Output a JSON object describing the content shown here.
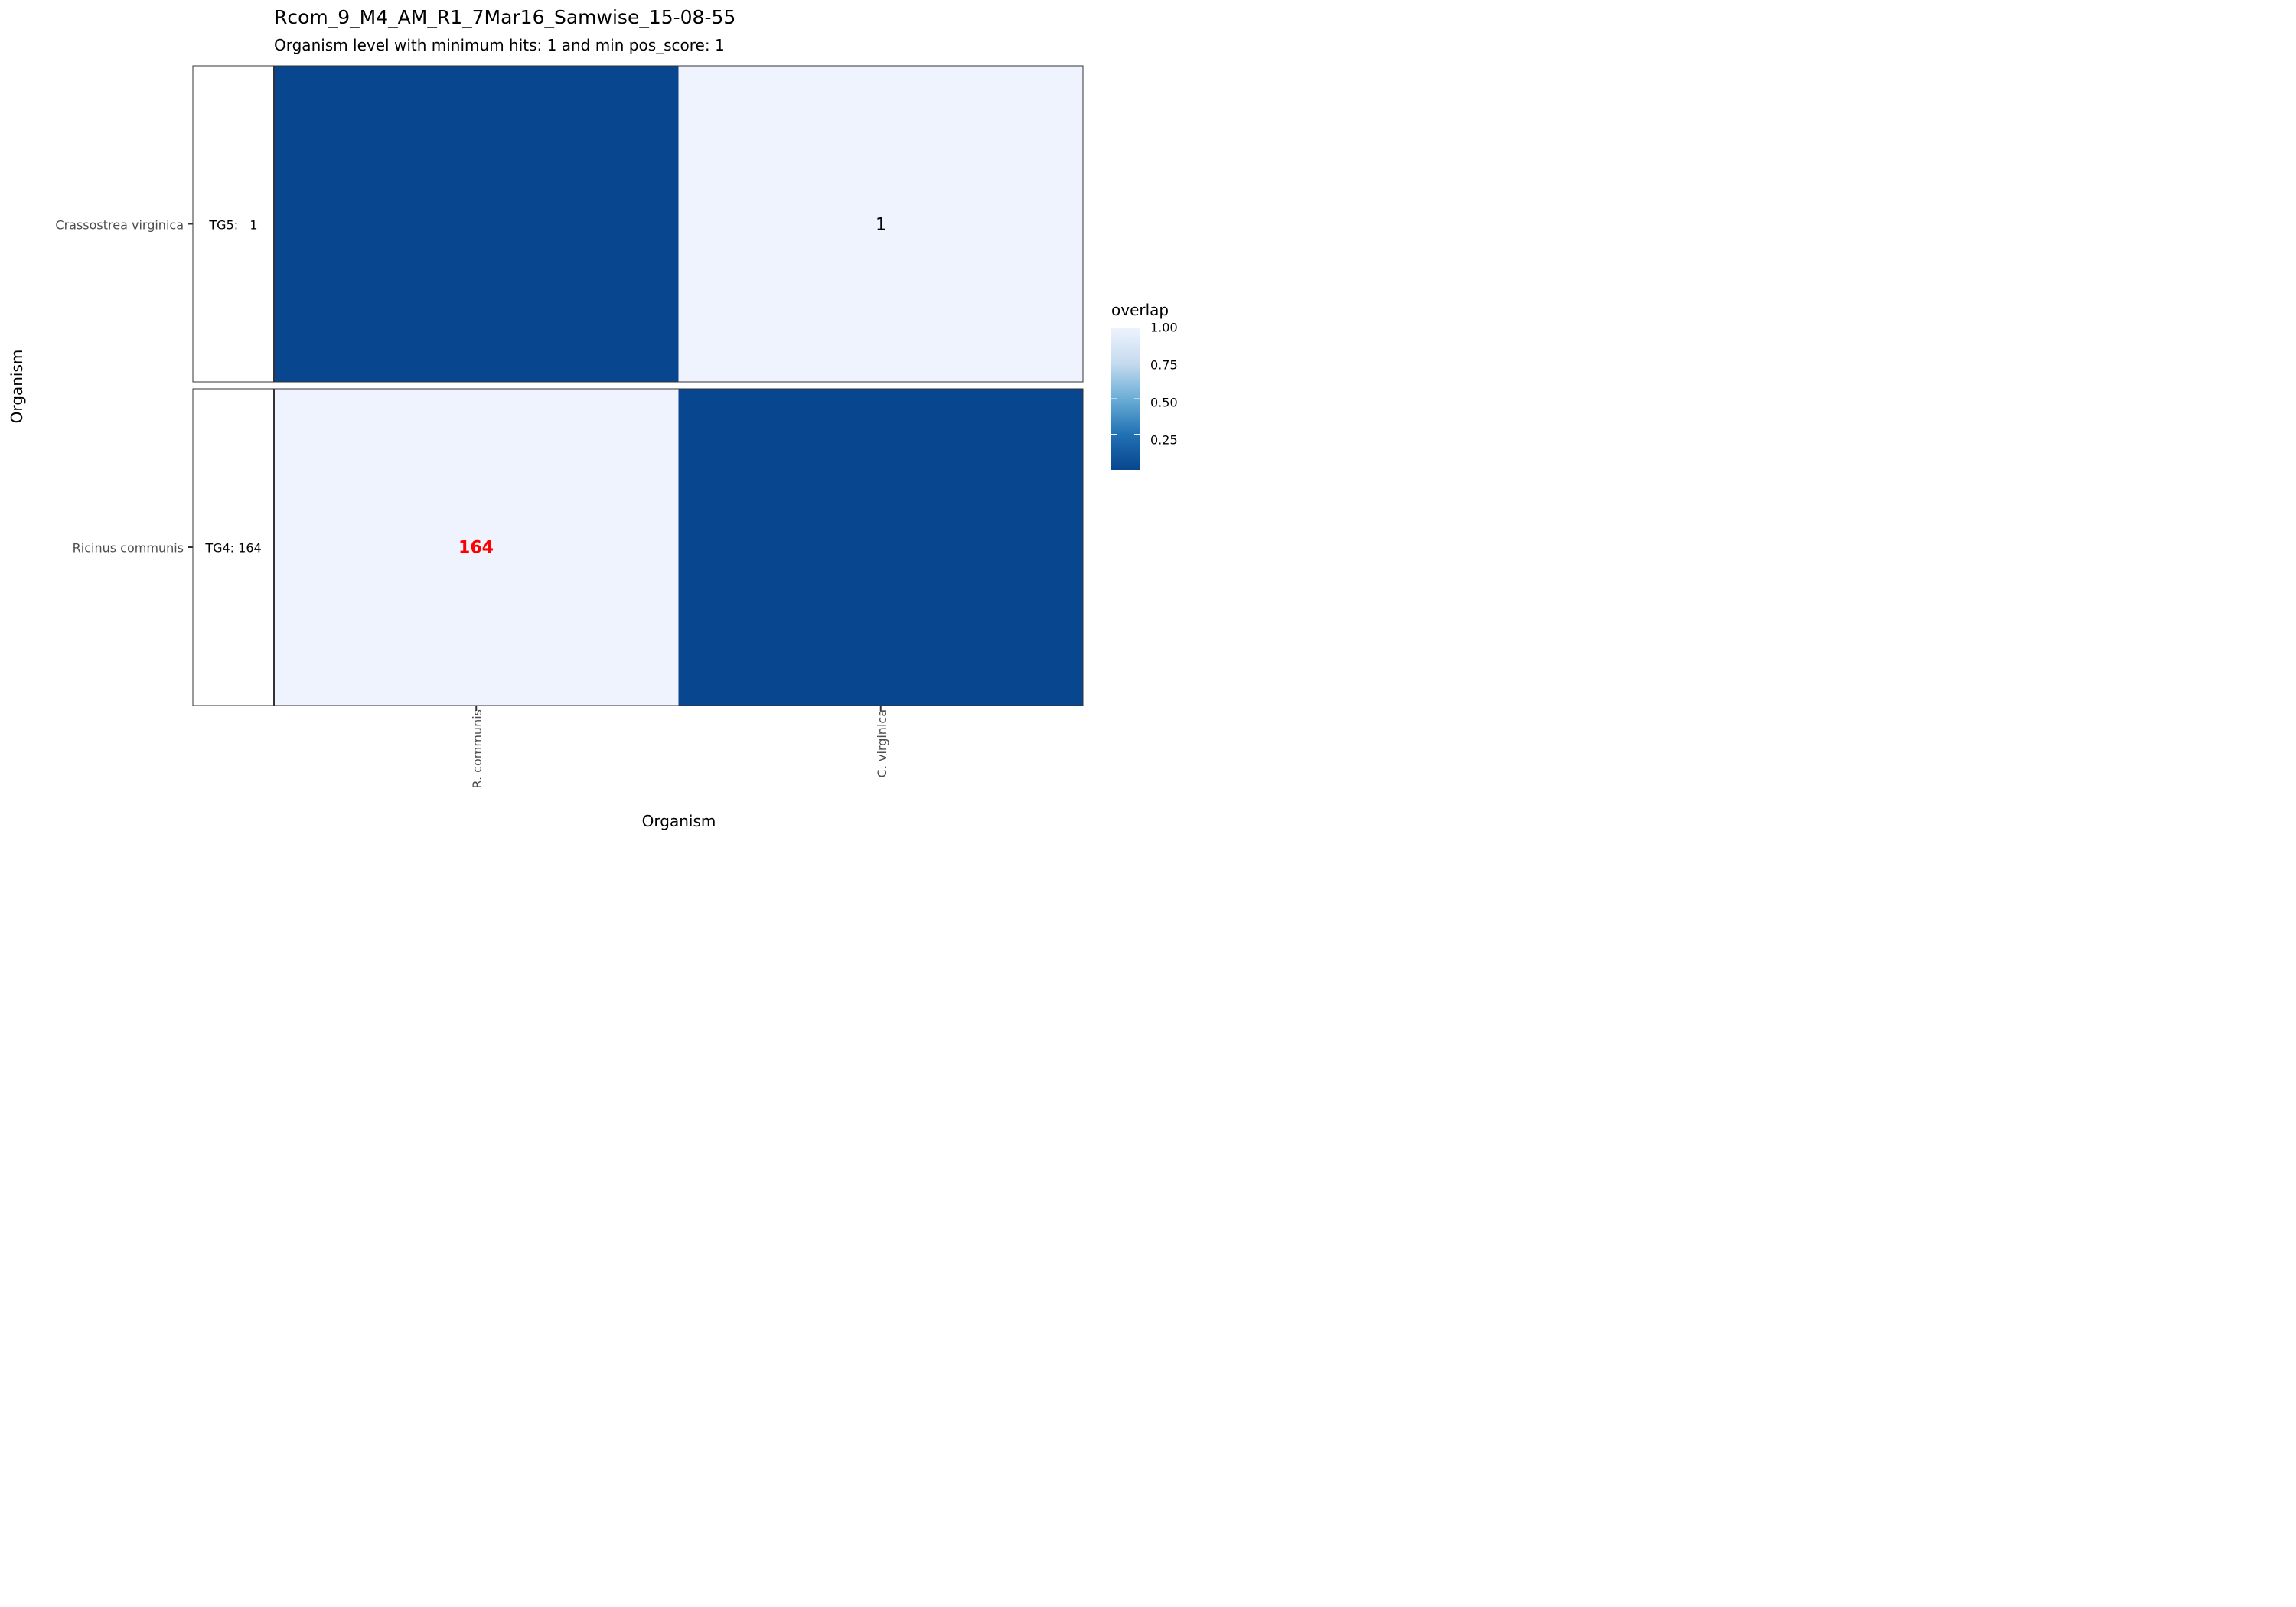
{
  "chart_data": {
    "type": "heatmap",
    "title": "Rcom_9_M4_AM_R1_7Mar16_Samwise_15-08-55",
    "subtitle": "Organism level with minimum hits: 1 and min pos_score: 1",
    "xlabel": "Organism",
    "ylabel": "Organism",
    "x_categories": [
      "R. communis",
      "C. virginica"
    ],
    "y_categories": [
      "Crassostrea virginica",
      "Ricinus communis"
    ],
    "row_labels": [
      "TG5:   1",
      "TG4: 164"
    ],
    "cells": [
      {
        "row": 0,
        "col": 0,
        "overlap": 0.0,
        "label": ""
      },
      {
        "row": 0,
        "col": 1,
        "overlap": 1.0,
        "label": "1"
      },
      {
        "row": 1,
        "col": 0,
        "overlap": 1.0,
        "label": "164"
      },
      {
        "row": 1,
        "col": 1,
        "overlap": 0.0,
        "label": ""
      }
    ],
    "legend": {
      "title": "overlap",
      "ticks": [
        "1.00",
        "0.75",
        "0.50",
        "0.25"
      ],
      "range": [
        0.0,
        1.0
      ],
      "placement": "right"
    },
    "colors": {
      "low": "#08468f",
      "high": "#eef3fd",
      "highlight_label": "#ff0000",
      "normal_label": "#000000"
    }
  }
}
